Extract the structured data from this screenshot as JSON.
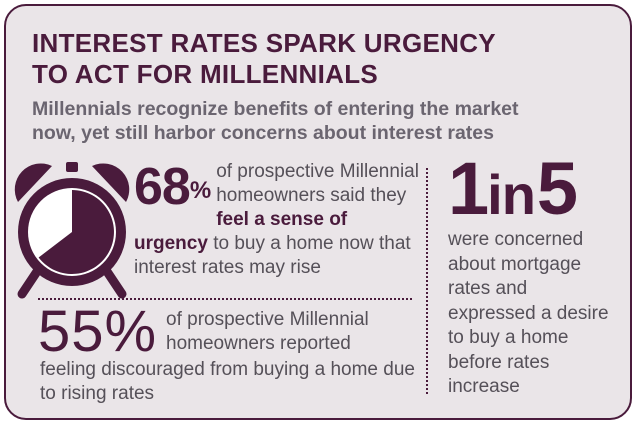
{
  "infographic": {
    "title_line1": "INTEREST RATES SPARK URGENCY",
    "title_line2": "TO ACT FOR MILLENNIALS",
    "subtitle_line1": "Millennials recognize benefits of entering the market",
    "subtitle_line2": "now, yet still harbor concerns about interest rates",
    "accent_color": "#4a1b3c",
    "background_color": "#eae5e8",
    "stat1": {
      "number": "68",
      "symbol": "%",
      "text_part1": " of prospective Millennial homeowners said they ",
      "emphasis": "feel a sense of urgency",
      "text_part2": " to buy a home now that interest rates may rise",
      "icon": "alarm-clock-icon"
    },
    "stat2": {
      "number": "55%",
      "text_line1": "of prospective Millennial homeowners reported",
      "text_line2": "feeling discouraged from buying a home due to rising rates"
    },
    "stat3": {
      "num_a": "1",
      "connector": "in",
      "num_b": "5",
      "text": "were concerned about mortgage rates and expressed a desire to buy a home before rates increase"
    }
  }
}
